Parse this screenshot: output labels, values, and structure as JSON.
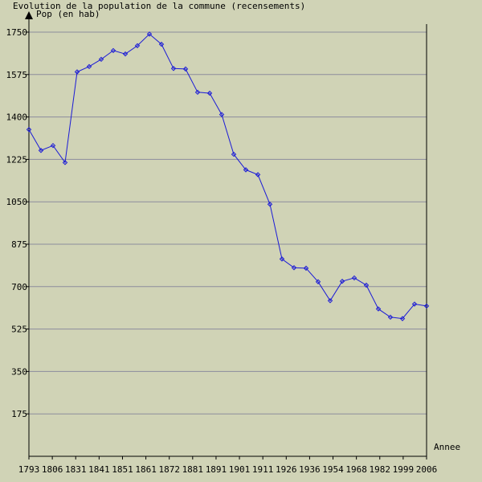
{
  "chart_data": {
    "type": "line",
    "title": "Evolution de la population de la commune (recensements)",
    "ylabel": "Pop (en hab)",
    "xlabel": "Annee",
    "ylim": [
      0,
      1750
    ],
    "yticks": [
      175,
      350,
      525,
      700,
      875,
      1050,
      1225,
      1400,
      1575,
      1750
    ],
    "xtick_labels": [
      "1793",
      "1806",
      "1831",
      "1841",
      "1851",
      "1861",
      "1872",
      "1881",
      "1891",
      "1901",
      "1911",
      "1926",
      "1936",
      "1954",
      "1968",
      "1982",
      "1999",
      "2006"
    ],
    "grid": true,
    "colors": {
      "series": "#1b1bd6",
      "grid": "#8c8c9c",
      "axis": "#000000",
      "background": "#d0d3b6"
    },
    "series": [
      {
        "values": [
          1348,
          1262,
          1282,
          1212,
          1586,
          1608,
          1638,
          1674,
          1660,
          1694,
          1742,
          1700,
          1600,
          1598,
          1502,
          1498,
          1410,
          1246,
          1182,
          1162,
          1040,
          814,
          778,
          776,
          720,
          642,
          722,
          736,
          706,
          608,
          574,
          568,
          628,
          620
        ]
      }
    ]
  }
}
